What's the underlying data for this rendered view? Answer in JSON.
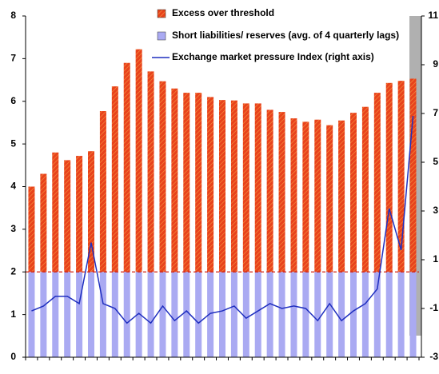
{
  "chart_data": {
    "type": "bar",
    "categories": [
      null,
      null,
      null,
      null,
      null,
      null,
      null,
      null,
      null,
      null,
      null,
      null,
      null,
      null,
      null,
      null,
      null,
      null,
      null,
      null,
      null,
      null,
      null,
      null,
      null,
      null,
      null,
      null,
      null,
      null,
      null,
      null,
      null
    ],
    "stacked": true,
    "series": [
      {
        "name": "Short liabilities/ reserves (avg. of 4 quarterly lags)",
        "color": "#aaaaf2",
        "values": [
          2,
          2,
          2,
          2,
          2,
          2,
          2,
          2,
          2,
          2,
          2,
          2,
          2,
          2,
          2,
          2,
          2,
          2,
          2,
          2,
          2,
          2,
          2,
          2,
          2,
          2,
          2,
          2,
          2,
          2,
          2,
          2,
          2
        ]
      },
      {
        "name": "Excess over threshold",
        "color": "#e8421c",
        "values": [
          2.0,
          2.3,
          2.8,
          2.62,
          2.72,
          2.83,
          3.77,
          4.35,
          4.9,
          5.22,
          4.7,
          4.47,
          4.3,
          4.2,
          4.2,
          4.1,
          4.03,
          4.02,
          3.95,
          3.95,
          3.8,
          3.75,
          3.6,
          3.52,
          3.57,
          3.44,
          3.55,
          3.73,
          3.87,
          4.2,
          4.43,
          4.48,
          4.53
        ]
      },
      {
        "name": "Exchange market pressure Index (right axis)",
        "color": "#1f2fbf",
        "type": "line",
        "axis": "y2",
        "values": [
          -1.1,
          -0.9,
          -0.5,
          -0.5,
          -0.8,
          1.7,
          -0.8,
          -1.0,
          -1.6,
          -1.2,
          -1.6,
          -0.9,
          -1.5,
          -1.1,
          -1.6,
          -1.2,
          -1.1,
          -0.9,
          -1.4,
          -1.1,
          -0.8,
          -1.0,
          -0.9,
          -1.0,
          -1.5,
          -0.8,
          -1.5,
          -1.1,
          -0.8,
          -0.2,
          3.1,
          1.4,
          6.9
        ]
      }
    ],
    "ylim": [
      0,
      8
    ],
    "yticks": [
      0,
      1,
      2,
      3,
      4,
      5,
      6,
      7,
      8
    ],
    "y2lim": [
      -3,
      11
    ],
    "y2ticks": [
      -3,
      -1,
      1,
      3,
      5,
      7,
      9,
      11
    ]
  }
}
